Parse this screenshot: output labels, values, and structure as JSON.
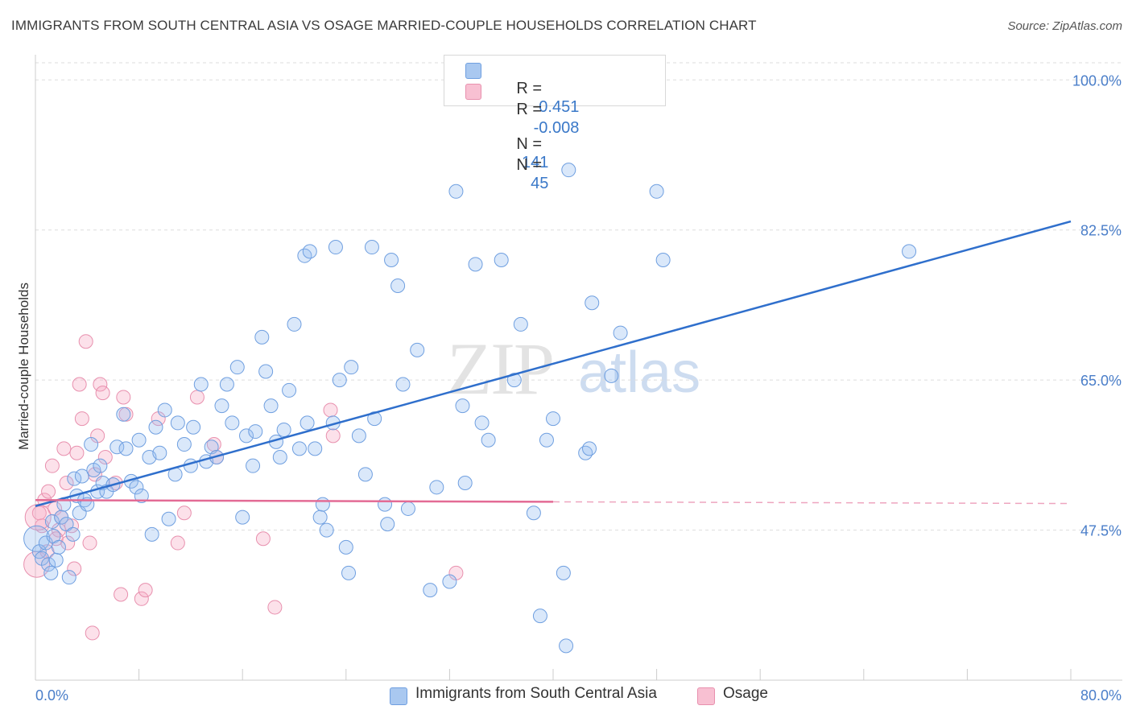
{
  "title": "IMMIGRANTS FROM SOUTH CENTRAL ASIA VS OSAGE MARRIED-COUPLE HOUSEHOLDS CORRELATION CHART",
  "source": "Source: ZipAtlas.com",
  "watermark": {
    "zip": "ZIP",
    "atlas": "atlas"
  },
  "legend": {
    "r_label": "R =",
    "n_label": "N =",
    "entries": [
      {
        "r": "0.451",
        "n": "141",
        "color": "#a9c8f0",
        "border": "#6f9fe0"
      },
      {
        "r": "-0.008",
        "n": "45",
        "color": "#f8c0d2",
        "border": "#e890ae"
      }
    ]
  },
  "bottom_legend": [
    "Immigrants from South Central Asia",
    "Osage"
  ],
  "colors": {
    "blue_fill": "rgba(150,190,240,0.35)",
    "blue_stroke": "#6f9fe0",
    "blue_line": "#2f6fcc",
    "pink_fill": "rgba(245,170,195,0.35)",
    "pink_stroke": "#e890ae",
    "pink_line": "#e36b95",
    "grid": "#dddddd",
    "axis_label": "#4a7ec9"
  },
  "chart_data": {
    "type": "scatter",
    "title": "IMMIGRANTS FROM SOUTH CENTRAL ASIA VS OSAGE MARRIED-COUPLE HOUSEHOLDS CORRELATION CHART",
    "xlabel": "",
    "ylabel": "Married-couple Households",
    "xlim": [
      0,
      80
    ],
    "ylim": [
      30,
      102
    ],
    "x_tick_labels": [
      "0.0%",
      "80.0%"
    ],
    "y_ticks": [
      47.5,
      65.0,
      82.5,
      100.0
    ],
    "y_tick_labels": [
      "47.5%",
      "65.0%",
      "82.5%",
      "100.0%"
    ],
    "grid": true,
    "legend_position": "top-center",
    "series": [
      {
        "name": "Immigrants from South Central Asia",
        "r": 0.451,
        "n": 141,
        "trend": {
          "x": [
            0,
            80
          ],
          "y": [
            50.3,
            83.5
          ],
          "dashed_from": null
        },
        "points": [
          [
            0.1,
            46.5
          ],
          [
            0.3,
            45.0
          ],
          [
            0.5,
            44.2
          ],
          [
            0.8,
            46.0
          ],
          [
            1.0,
            43.5
          ],
          [
            1.2,
            42.5
          ],
          [
            1.3,
            48.5
          ],
          [
            1.4,
            46.8
          ],
          [
            1.6,
            44.0
          ],
          [
            1.8,
            45.5
          ],
          [
            2.0,
            49.0
          ],
          [
            2.2,
            50.5
          ],
          [
            2.4,
            48.2
          ],
          [
            2.6,
            42.0
          ],
          [
            2.9,
            47.0
          ],
          [
            3.0,
            53.5
          ],
          [
            3.2,
            51.5
          ],
          [
            3.4,
            49.5
          ],
          [
            3.6,
            53.8
          ],
          [
            3.8,
            51.0
          ],
          [
            4.0,
            50.5
          ],
          [
            4.3,
            57.5
          ],
          [
            4.5,
            54.5
          ],
          [
            4.8,
            52.0
          ],
          [
            5.0,
            55.0
          ],
          [
            5.2,
            53.0
          ],
          [
            5.5,
            52.0
          ],
          [
            6.0,
            52.8
          ],
          [
            6.3,
            57.2
          ],
          [
            6.8,
            61.0
          ],
          [
            7.0,
            57.0
          ],
          [
            7.4,
            53.2
          ],
          [
            7.8,
            52.5
          ],
          [
            8.0,
            58.0
          ],
          [
            8.2,
            51.5
          ],
          [
            8.8,
            56.0
          ],
          [
            9.0,
            47.0
          ],
          [
            9.3,
            59.5
          ],
          [
            9.6,
            56.5
          ],
          [
            10.0,
            61.5
          ],
          [
            10.3,
            48.8
          ],
          [
            10.8,
            54.0
          ],
          [
            11.0,
            60.0
          ],
          [
            11.5,
            57.5
          ],
          [
            12.0,
            55.0
          ],
          [
            12.2,
            59.5
          ],
          [
            12.8,
            64.5
          ],
          [
            13.2,
            55.5
          ],
          [
            13.6,
            57.2
          ],
          [
            14.0,
            56.0
          ],
          [
            14.4,
            62.0
          ],
          [
            14.8,
            64.5
          ],
          [
            15.2,
            60.0
          ],
          [
            15.6,
            66.5
          ],
          [
            16.0,
            49.0
          ],
          [
            16.3,
            58.5
          ],
          [
            16.8,
            55.0
          ],
          [
            17.0,
            59.0
          ],
          [
            17.5,
            70.0
          ],
          [
            17.8,
            66.0
          ],
          [
            18.2,
            62.0
          ],
          [
            18.6,
            57.8
          ],
          [
            18.9,
            56.0
          ],
          [
            19.2,
            59.2
          ],
          [
            19.6,
            63.8
          ],
          [
            20.0,
            71.5
          ],
          [
            20.4,
            57.0
          ],
          [
            20.8,
            79.5
          ],
          [
            21.0,
            60.0
          ],
          [
            21.2,
            80.0
          ],
          [
            21.6,
            57.0
          ],
          [
            22.0,
            49.0
          ],
          [
            22.2,
            50.5
          ],
          [
            22.5,
            47.5
          ],
          [
            23.0,
            60.0
          ],
          [
            23.2,
            80.5
          ],
          [
            23.5,
            65.0
          ],
          [
            24.0,
            45.5
          ],
          [
            24.2,
            42.5
          ],
          [
            24.4,
            66.5
          ],
          [
            25.0,
            58.5
          ],
          [
            25.5,
            54.0
          ],
          [
            26.0,
            80.5
          ],
          [
            26.2,
            60.5
          ],
          [
            27.0,
            50.5
          ],
          [
            27.2,
            48.2
          ],
          [
            27.5,
            79.0
          ],
          [
            28.0,
            76.0
          ],
          [
            28.4,
            64.5
          ],
          [
            28.8,
            50.0
          ],
          [
            29.5,
            68.5
          ],
          [
            30.5,
            40.5
          ],
          [
            31.0,
            52.5
          ],
          [
            32.0,
            41.5
          ],
          [
            32.5,
            87.0
          ],
          [
            33.0,
            62.0
          ],
          [
            33.2,
            53.0
          ],
          [
            34.0,
            78.5
          ],
          [
            34.5,
            60.0
          ],
          [
            35.0,
            58.0
          ],
          [
            36.0,
            79.0
          ],
          [
            37.0,
            65.0
          ],
          [
            37.5,
            71.5
          ],
          [
            38.5,
            49.5
          ],
          [
            39.0,
            37.5
          ],
          [
            39.5,
            58.0
          ],
          [
            40.0,
            60.5
          ],
          [
            40.8,
            42.5
          ],
          [
            41.2,
            89.5
          ],
          [
            41.0,
            34.0
          ],
          [
            42.5,
            56.5
          ],
          [
            42.8,
            57.0
          ],
          [
            43.0,
            74.0
          ],
          [
            44.5,
            65.5
          ],
          [
            45.2,
            70.5
          ],
          [
            48.0,
            87.0
          ],
          [
            48.5,
            79.0
          ],
          [
            67.5,
            80.0
          ]
        ]
      },
      {
        "name": "Osage",
        "r": -0.008,
        "n": 45,
        "trend": {
          "x": [
            0,
            80
          ],
          "y": [
            51.0,
            50.6
          ],
          "dashed_from": 40
        },
        "points": [
          [
            0.1,
            43.5
          ],
          [
            0.3,
            49.5
          ],
          [
            0.5,
            48.0
          ],
          [
            0.7,
            51.0
          ],
          [
            0.9,
            45.0
          ],
          [
            1.0,
            52.0
          ],
          [
            1.3,
            55.0
          ],
          [
            1.5,
            50.0
          ],
          [
            1.8,
            47.5
          ],
          [
            2.0,
            49.0
          ],
          [
            2.2,
            57.0
          ],
          [
            2.5,
            46.0
          ],
          [
            2.8,
            48.0
          ],
          [
            3.0,
            43.0
          ],
          [
            3.2,
            56.5
          ],
          [
            3.4,
            64.5
          ],
          [
            3.6,
            60.5
          ],
          [
            3.9,
            69.5
          ],
          [
            4.2,
            46.0
          ],
          [
            4.4,
            35.5
          ],
          [
            4.6,
            54.0
          ],
          [
            4.8,
            58.5
          ],
          [
            5.0,
            64.5
          ],
          [
            5.2,
            63.5
          ],
          [
            5.4,
            56.0
          ],
          [
            6.2,
            53.0
          ],
          [
            6.6,
            40.0
          ],
          [
            6.8,
            63.0
          ],
          [
            7.0,
            61.0
          ],
          [
            8.2,
            39.5
          ],
          [
            8.5,
            40.5
          ],
          [
            9.5,
            60.5
          ],
          [
            11.0,
            46.0
          ],
          [
            11.5,
            49.5
          ],
          [
            12.5,
            63.0
          ],
          [
            13.8,
            57.5
          ],
          [
            14.0,
            56.0
          ],
          [
            17.6,
            46.5
          ],
          [
            18.5,
            38.5
          ],
          [
            22.8,
            61.5
          ],
          [
            23.0,
            58.5
          ],
          [
            32.5,
            42.5
          ],
          [
            0.2,
            49.0
          ],
          [
            1.6,
            46.5
          ],
          [
            2.4,
            53.0
          ]
        ]
      }
    ]
  }
}
